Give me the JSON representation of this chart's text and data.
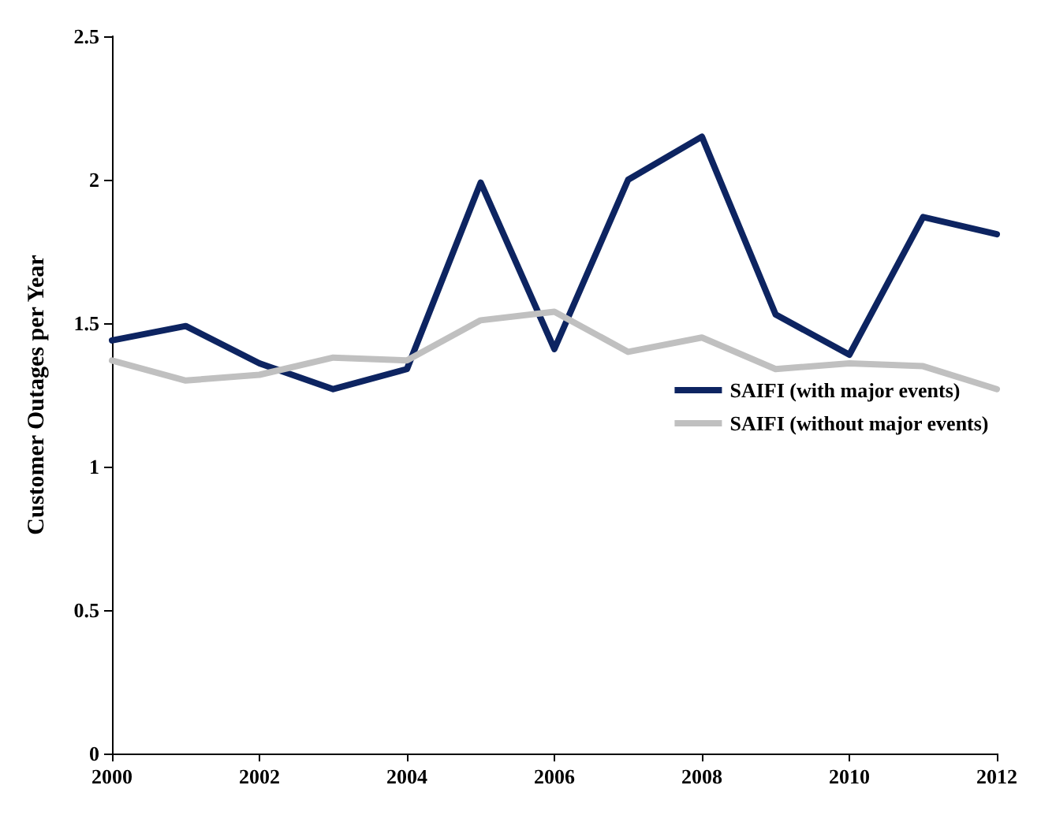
{
  "chart_data": {
    "type": "line",
    "ylabel": "Customer Outages per Year",
    "x": [
      2000,
      2001,
      2002,
      2003,
      2004,
      2005,
      2006,
      2007,
      2008,
      2009,
      2010,
      2011,
      2012
    ],
    "series": [
      {
        "name": "SAIFI (with major events)",
        "color": "#0d2461",
        "values": [
          1.44,
          1.49,
          1.36,
          1.27,
          1.34,
          1.99,
          1.41,
          2.0,
          2.15,
          1.53,
          1.39,
          1.87,
          1.81
        ]
      },
      {
        "name": "SAIFI (without major events)",
        "color": "#c0c0c0",
        "values": [
          1.37,
          1.3,
          1.32,
          1.38,
          1.37,
          1.51,
          1.54,
          1.4,
          1.45,
          1.34,
          1.36,
          1.35,
          1.27
        ]
      }
    ],
    "xlim": [
      2000,
      2012
    ],
    "xticks": [
      2000,
      2002,
      2004,
      2006,
      2008,
      2010,
      2012
    ],
    "ylim": [
      0,
      2.5
    ],
    "yticks": [
      0,
      0.5,
      1,
      1.5,
      2,
      2.5
    ],
    "grid": false,
    "legend": "right",
    "marker": "none",
    "line_style": "solid"
  }
}
